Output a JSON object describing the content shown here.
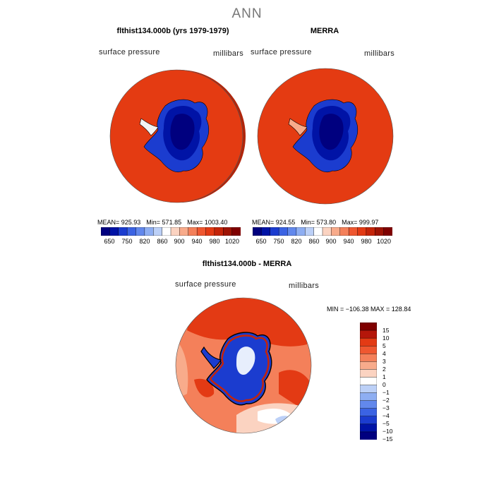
{
  "main_title": "ANN",
  "panels": [
    {
      "title": "flthist134.000b (yrs 1979-1979)",
      "left_label": "surface pressure",
      "right_label": "millibars",
      "stats": [
        "MEAN= 925.93",
        "Min= 571.85",
        "Max= 1003.40"
      ]
    },
    {
      "title": "MERRA",
      "left_label": "surface pressure",
      "right_label": "millibars",
      "stats": [
        "MEAN= 924.55",
        "Min= 573.80",
        "Max= 999.97"
      ]
    },
    {
      "title": "flthist134.000b - MERRA",
      "left_label": "surface pressure",
      "right_label": "millibars",
      "stats": [
        "MIN = −106.38 MAX = 128.84"
      ]
    }
  ],
  "colorbar_abs": {
    "tick_labels": [
      "650",
      "750",
      "820",
      "860",
      "900",
      "940",
      "980",
      "1020"
    ],
    "colors": [
      "#00007f",
      "#0013a6",
      "#1b3ccf",
      "#3b63e3",
      "#6288ec",
      "#8eaef2",
      "#bcd0f7",
      "#ffffff",
      "#fbd3c1",
      "#f8ab8b",
      "#f4805a",
      "#ef5730",
      "#e33a14",
      "#c42409",
      "#9e1304",
      "#7f0000"
    ]
  },
  "colorbar_diff": {
    "tick_labels": [
      "15",
      "10",
      "5",
      "4",
      "3",
      "2",
      "1",
      "0",
      "−1",
      "−2",
      "−3",
      "−4",
      "−5",
      "−10",
      "−15"
    ],
    "colors": [
      "#7f0000",
      "#b5160a",
      "#e33a14",
      "#ef5730",
      "#f4805a",
      "#f8ab8b",
      "#fbd3c1",
      "#ffffff",
      "#bcd0f7",
      "#8eaef2",
      "#6288ec",
      "#3b63e3",
      "#1b3ccf",
      "#0013a6",
      "#00007f"
    ]
  }
}
